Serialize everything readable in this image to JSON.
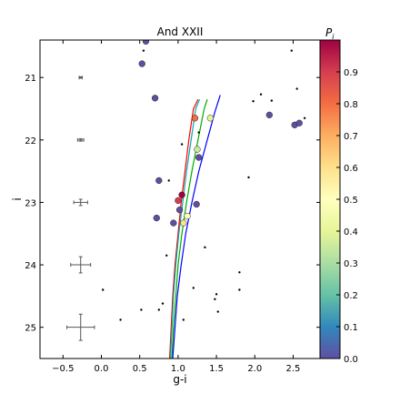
{
  "chart_data": {
    "type": "scatter",
    "title": "And XXII",
    "xlabel": "g-i",
    "ylabel": "i",
    "xlim": [
      -0.8,
      2.85
    ],
    "ylim": [
      25.5,
      20.4
    ],
    "y_inverted": true,
    "x_ticks": [
      -0.5,
      0.0,
      0.5,
      1.0,
      1.5,
      2.0,
      2.5
    ],
    "x_tick_labels": [
      "−0.5",
      "0.0",
      "0.5",
      "1.0",
      "1.5",
      "2.0",
      "2.5"
    ],
    "y_ticks": [
      21,
      22,
      23,
      24,
      25
    ],
    "y_tick_labels": [
      "21",
      "22",
      "23",
      "24",
      "25"
    ],
    "colorbar": {
      "label": "P",
      "label_subscript": "i",
      "min": 0.0,
      "max": 1.0,
      "ticks": [
        0.0,
        0.1,
        0.2,
        0.3,
        0.4,
        0.5,
        0.6,
        0.7,
        0.8,
        0.9
      ],
      "tick_labels": [
        "0.0",
        "0.1",
        "0.2",
        "0.3",
        "0.4",
        "0.5",
        "0.6",
        "0.7",
        "0.8",
        "0.9"
      ],
      "colormap": [
        "#5e4fa2",
        "#3288bd",
        "#66c2a5",
        "#abdda4",
        "#e6f598",
        "#ffffbf",
        "#fee08b",
        "#fdae61",
        "#f46d43",
        "#d53e4f",
        "#9e0142"
      ]
    },
    "members": [
      {
        "x": 0.58,
        "y": 20.42,
        "p": 0.0
      },
      {
        "x": 0.53,
        "y": 20.78,
        "p": 0.0
      },
      {
        "x": 0.7,
        "y": 21.33,
        "p": 0.0
      },
      {
        "x": 1.22,
        "y": 21.65,
        "p": 0.8
      },
      {
        "x": 1.42,
        "y": 21.65,
        "p": 0.4
      },
      {
        "x": 1.25,
        "y": 22.15,
        "p": 0.35
      },
      {
        "x": 1.27,
        "y": 22.28,
        "p": 0.0
      },
      {
        "x": 0.75,
        "y": 22.65,
        "p": 0.0
      },
      {
        "x": 1.05,
        "y": 22.88,
        "p": 1.0
      },
      {
        "x": 1.0,
        "y": 22.97,
        "p": 0.9
      },
      {
        "x": 1.24,
        "y": 23.03,
        "p": 0.0
      },
      {
        "x": 1.02,
        "y": 23.12,
        "p": 0.0
      },
      {
        "x": 0.72,
        "y": 23.25,
        "p": 0.0
      },
      {
        "x": 1.12,
        "y": 23.22,
        "p": 0.5
      },
      {
        "x": 1.07,
        "y": 23.33,
        "p": 0.6
      },
      {
        "x": 0.94,
        "y": 23.33,
        "p": 0.0
      },
      {
        "x": 2.19,
        "y": 21.6,
        "p": 0.0
      },
      {
        "x": 2.52,
        "y": 21.76,
        "p": 0.0
      },
      {
        "x": 2.58,
        "y": 21.73,
        "p": 0.0
      }
    ],
    "field_stars": [
      {
        "x": 0.55,
        "y": 20.57
      },
      {
        "x": 2.48,
        "y": 20.57
      },
      {
        "x": 2.55,
        "y": 21.18
      },
      {
        "x": 2.08,
        "y": 21.27
      },
      {
        "x": 1.98,
        "y": 21.38
      },
      {
        "x": 2.22,
        "y": 21.37
      },
      {
        "x": 2.65,
        "y": 21.65
      },
      {
        "x": 1.27,
        "y": 21.88
      },
      {
        "x": 1.05,
        "y": 22.07
      },
      {
        "x": 0.88,
        "y": 22.65
      },
      {
        "x": 1.92,
        "y": 22.6
      },
      {
        "x": 1.35,
        "y": 23.72
      },
      {
        "x": 0.85,
        "y": 23.85
      },
      {
        "x": 1.8,
        "y": 24.12
      },
      {
        "x": 0.02,
        "y": 24.4
      },
      {
        "x": 1.2,
        "y": 24.37
      },
      {
        "x": 1.8,
        "y": 24.4
      },
      {
        "x": 1.5,
        "y": 24.47
      },
      {
        "x": 1.48,
        "y": 24.55
      },
      {
        "x": 0.8,
        "y": 24.62
      },
      {
        "x": 0.52,
        "y": 24.72
      },
      {
        "x": 0.75,
        "y": 24.72
      },
      {
        "x": 1.52,
        "y": 24.75
      },
      {
        "x": 0.25,
        "y": 24.88
      },
      {
        "x": 1.07,
        "y": 24.88
      }
    ],
    "error_bars": [
      {
        "x": -0.27,
        "y": 21.0,
        "xerr": 0.02,
        "yerr": 0.01
      },
      {
        "x": -0.27,
        "y": 22.0,
        "xerr": 0.04,
        "yerr": 0.02
      },
      {
        "x": -0.27,
        "y": 23.0,
        "xerr": 0.09,
        "yerr": 0.05
      },
      {
        "x": -0.27,
        "y": 24.0,
        "xerr": 0.13,
        "yerr": 0.13
      },
      {
        "x": -0.27,
        "y": 25.0,
        "xerr": 0.18,
        "yerr": 0.21
      }
    ],
    "isochrones": [
      {
        "color": "#ff0000",
        "points": [
          [
            0.89,
            25.5
          ],
          [
            0.91,
            25.0
          ],
          [
            0.93,
            24.5
          ],
          [
            0.96,
            24.0
          ],
          [
            1.0,
            23.5
          ],
          [
            1.04,
            23.0
          ],
          [
            1.09,
            22.5
          ],
          [
            1.14,
            22.0
          ],
          [
            1.2,
            21.5
          ],
          [
            1.26,
            21.35
          ]
        ]
      },
      {
        "color": "#00aaaa",
        "points": [
          [
            0.9,
            25.5
          ],
          [
            0.92,
            25.0
          ],
          [
            0.94,
            24.5
          ],
          [
            0.97,
            24.0
          ],
          [
            1.01,
            23.5
          ],
          [
            1.06,
            23.0
          ],
          [
            1.11,
            22.5
          ],
          [
            1.17,
            22.0
          ],
          [
            1.23,
            21.5
          ],
          [
            1.28,
            21.35
          ]
        ]
      },
      {
        "color": "#00aa00",
        "points": [
          [
            0.92,
            25.5
          ],
          [
            0.94,
            25.0
          ],
          [
            0.97,
            24.5
          ],
          [
            1.0,
            24.0
          ],
          [
            1.05,
            23.5
          ],
          [
            1.11,
            23.0
          ],
          [
            1.18,
            22.5
          ],
          [
            1.26,
            22.0
          ],
          [
            1.34,
            21.5
          ],
          [
            1.38,
            21.35
          ]
        ]
      },
      {
        "color": "#0000ff",
        "points": [
          [
            0.93,
            25.5
          ],
          [
            0.96,
            25.0
          ],
          [
            0.99,
            24.5
          ],
          [
            1.04,
            24.0
          ],
          [
            1.1,
            23.5
          ],
          [
            1.18,
            23.0
          ],
          [
            1.27,
            22.5
          ],
          [
            1.38,
            22.0
          ],
          [
            1.48,
            21.55
          ],
          [
            1.55,
            21.28
          ]
        ]
      }
    ]
  }
}
